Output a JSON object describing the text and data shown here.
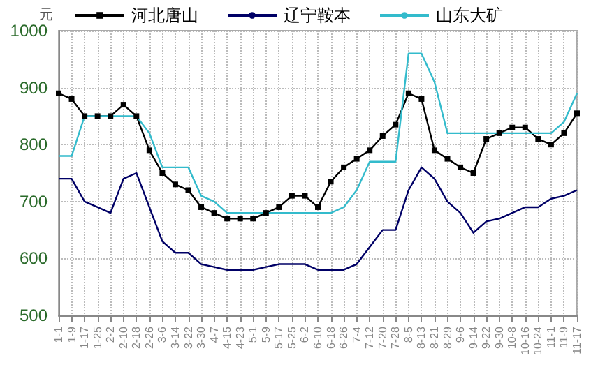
{
  "chart_data": {
    "type": "line",
    "ylabel": "元",
    "categories": [
      "1-1",
      "1-9",
      "1-17",
      "1-25",
      "2-2",
      "2-10",
      "2-18",
      "2-26",
      "3-6",
      "3-14",
      "3-22",
      "3-30",
      "4-7",
      "4-15",
      "4-23",
      "5-1",
      "5-9",
      "5-17",
      "5-25",
      "6-2",
      "6-10",
      "6-18",
      "6-26",
      "7-4",
      "7-12",
      "7-20",
      "7-28",
      "8-5",
      "8-13",
      "8-21",
      "8-29",
      "9-6",
      "9-14",
      "9-22",
      "9-30",
      "10-8",
      "10-16",
      "10-24",
      "11-1",
      "11-9",
      "11-17"
    ],
    "series": [
      {
        "name": "河北唐山",
        "color": "#000000",
        "marker": "square",
        "values": [
          890,
          880,
          850,
          850,
          850,
          870,
          850,
          790,
          750,
          730,
          720,
          690,
          680,
          670,
          670,
          670,
          680,
          690,
          710,
          710,
          690,
          735,
          760,
          775,
          790,
          815,
          835,
          890,
          880,
          790,
          775,
          760,
          750,
          810,
          820,
          830,
          830,
          810,
          800,
          820,
          855
        ]
      },
      {
        "name": "辽宁鞍本",
        "color": "#000066",
        "marker": "none",
        "values": [
          740,
          740,
          700,
          690,
          680,
          740,
          750,
          690,
          630,
          610,
          610,
          590,
          585,
          580,
          580,
          580,
          585,
          590,
          590,
          590,
          580,
          580,
          580,
          590,
          620,
          650,
          650,
          720,
          760,
          740,
          700,
          680,
          645,
          665,
          670,
          680,
          690,
          690,
          705,
          710,
          720
        ]
      },
      {
        "name": "山东大矿",
        "color": "#33bbcc",
        "marker": "none",
        "values": [
          780,
          780,
          850,
          850,
          850,
          850,
          850,
          820,
          760,
          760,
          760,
          710,
          700,
          680,
          680,
          680,
          680,
          680,
          680,
          680,
          680,
          680,
          690,
          720,
          770,
          770,
          770,
          960,
          960,
          910,
          820,
          820,
          820,
          820,
          820,
          820,
          820,
          820,
          820,
          840,
          890
        ]
      }
    ],
    "ylim": [
      500,
      1000
    ],
    "yticks": [
      500,
      600,
      700,
      800,
      900,
      1000
    ],
    "grid": true,
    "legend": "top",
    "line_style": "solid"
  }
}
